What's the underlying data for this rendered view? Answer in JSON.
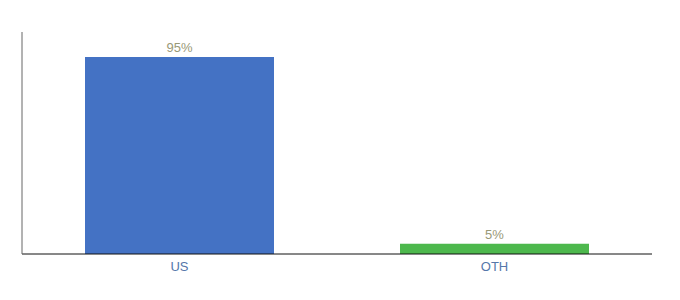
{
  "chart_data": {
    "type": "bar",
    "categories": [
      "US",
      "OTH"
    ],
    "values": [
      95,
      5
    ],
    "value_labels": [
      "95%",
      "5%"
    ],
    "colors": [
      "#4472c4",
      "#4db84d"
    ],
    "ylim": [
      0,
      107
    ],
    "yticks": [],
    "data_labels": true,
    "tick_labels": "x"
  }
}
